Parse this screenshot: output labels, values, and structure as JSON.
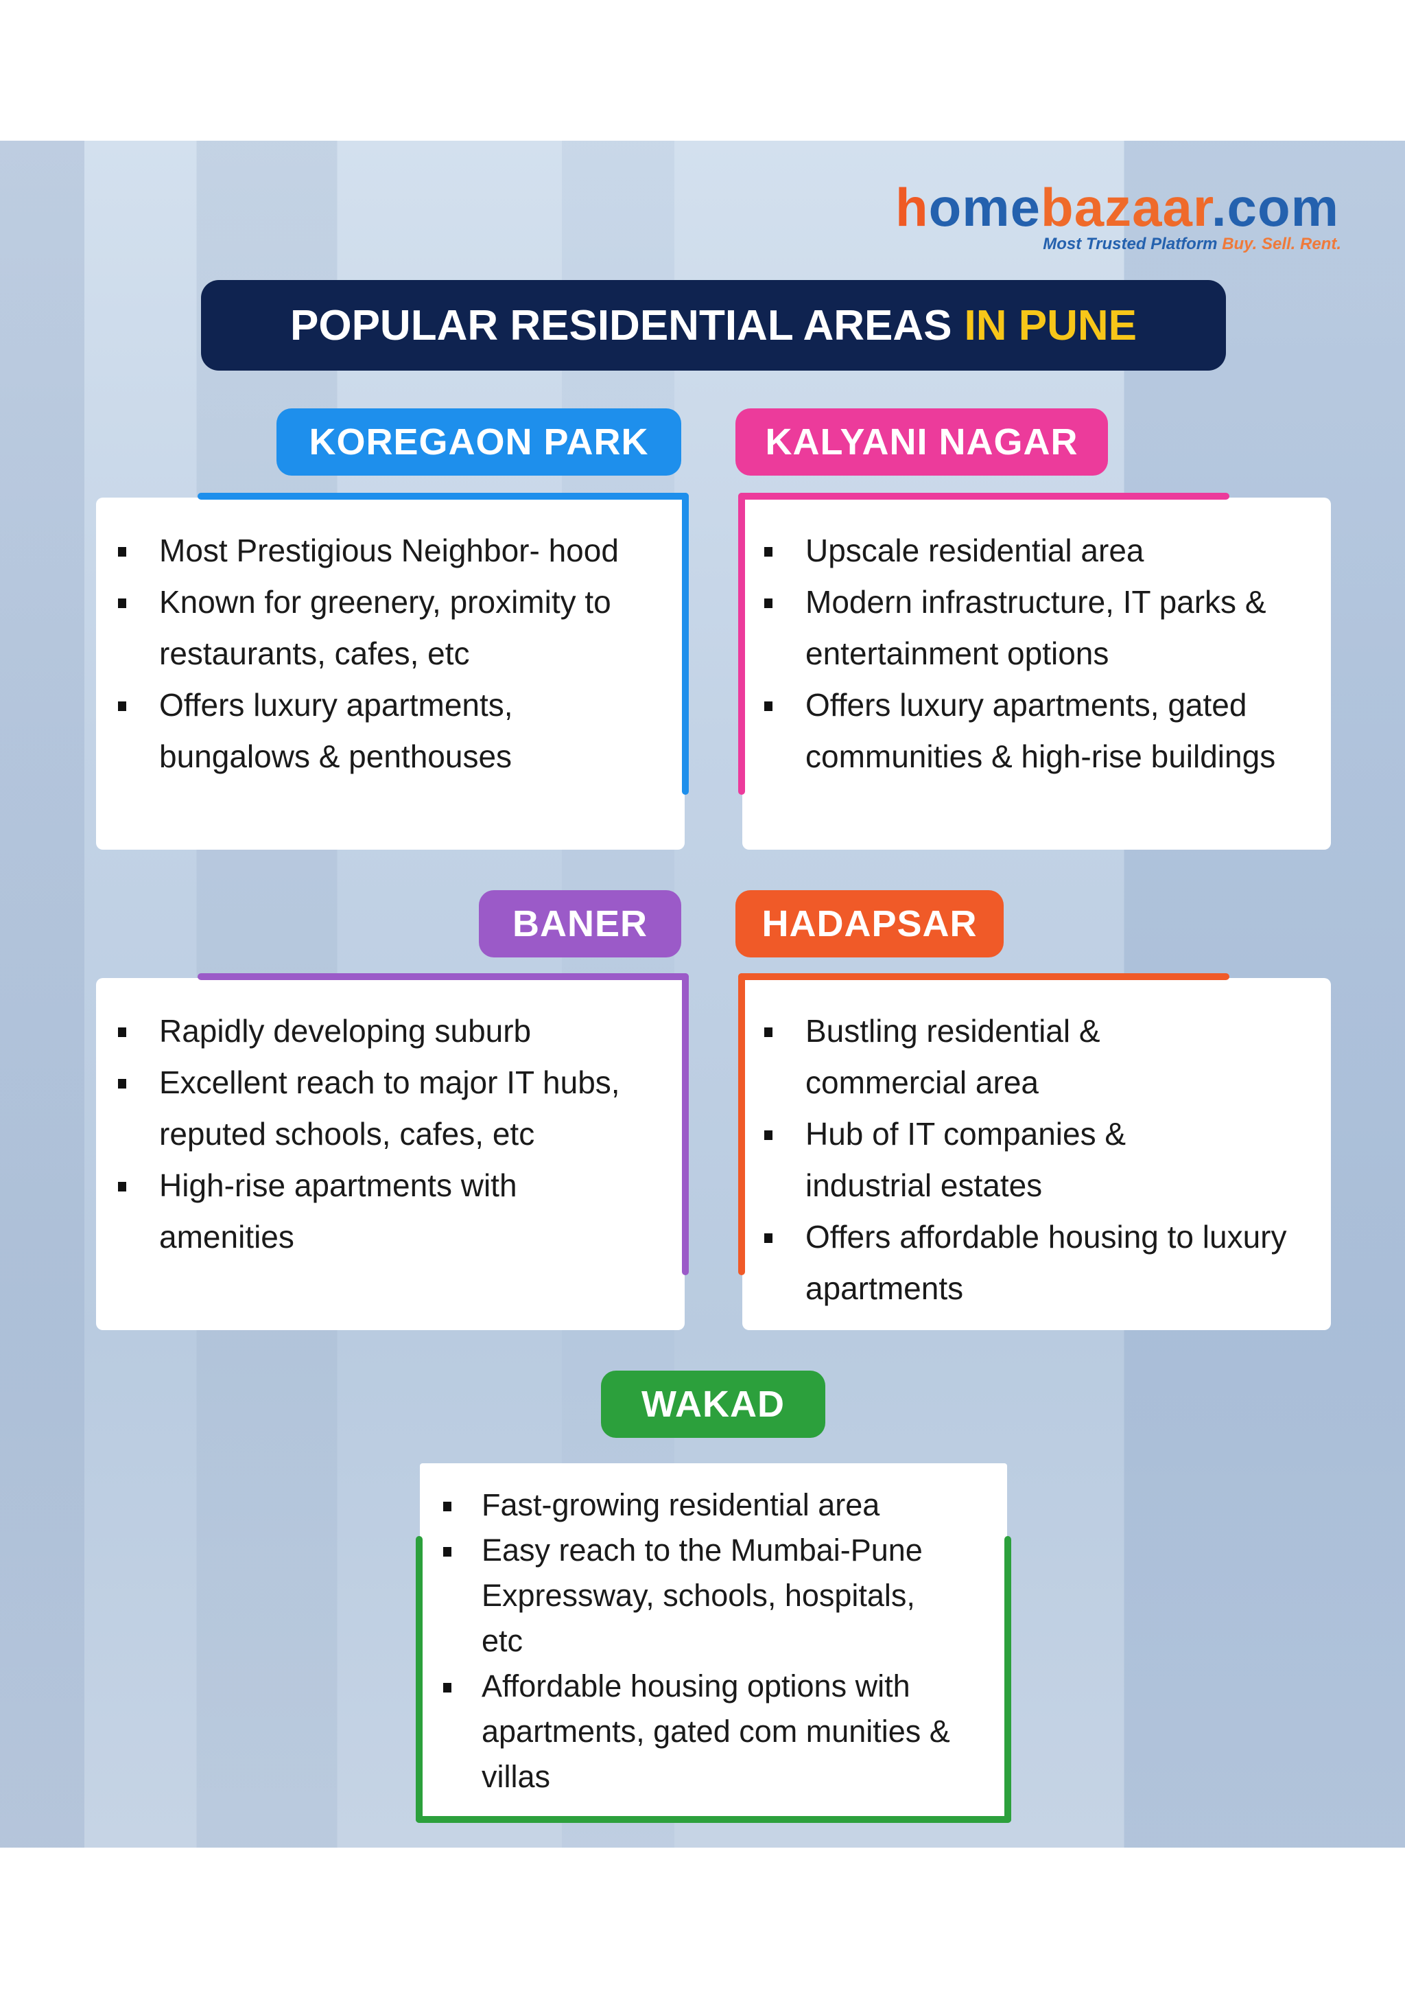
{
  "logo": {
    "part1": "h",
    "part2": "ome",
    "part3": "bazaar",
    "part4": ".com",
    "tagline": "Most Trusted Platform",
    "tagline_accent": "Buy. Sell. Rent."
  },
  "title": {
    "main": "POPULAR RESIDENTIAL AREAS",
    "accent": "IN PUNE"
  },
  "colors": {
    "title_bg": "#0f2350",
    "accent_yellow": "#f7c619",
    "koregaon": "#1e8fec",
    "kalyani": "#ec3b9b",
    "baner": "#9b5ac8",
    "hadapsar": "#f05a28",
    "wakad": "#2ca03c"
  },
  "areas": [
    {
      "name": "KOREGAON PARK",
      "points": [
        "Most Prestigious Neighbor- hood",
        "Known for greenery, proximity to restaurants, cafes, etc",
        "Offers luxury apartments, bungalows & penthouses"
      ]
    },
    {
      "name": "KALYANI NAGAR",
      "points": [
        "Upscale residential area",
        "Modern infrastructure, IT parks & entertainment options",
        "Offers luxury apartments, gated communities & high-rise buildings"
      ]
    },
    {
      "name": "BANER",
      "points": [
        "Rapidly developing suburb",
        "Excellent reach to major IT hubs, reputed schools, cafes, etc",
        "High-rise apartments with amenities"
      ]
    },
    {
      "name": "HADAPSAR",
      "points": [
        "Bustling residential & commercial area",
        "Hub of IT companies & industrial estates",
        "Offers affordable housing to luxury apartments"
      ]
    },
    {
      "name": "WAKAD",
      "points": [
        "Fast-growing residential area",
        "Easy reach to the Mumbai-Pune Expressway, schools, hospitals, etc",
        "Affordable housing options with apartments, gated com munities & villas"
      ]
    }
  ]
}
